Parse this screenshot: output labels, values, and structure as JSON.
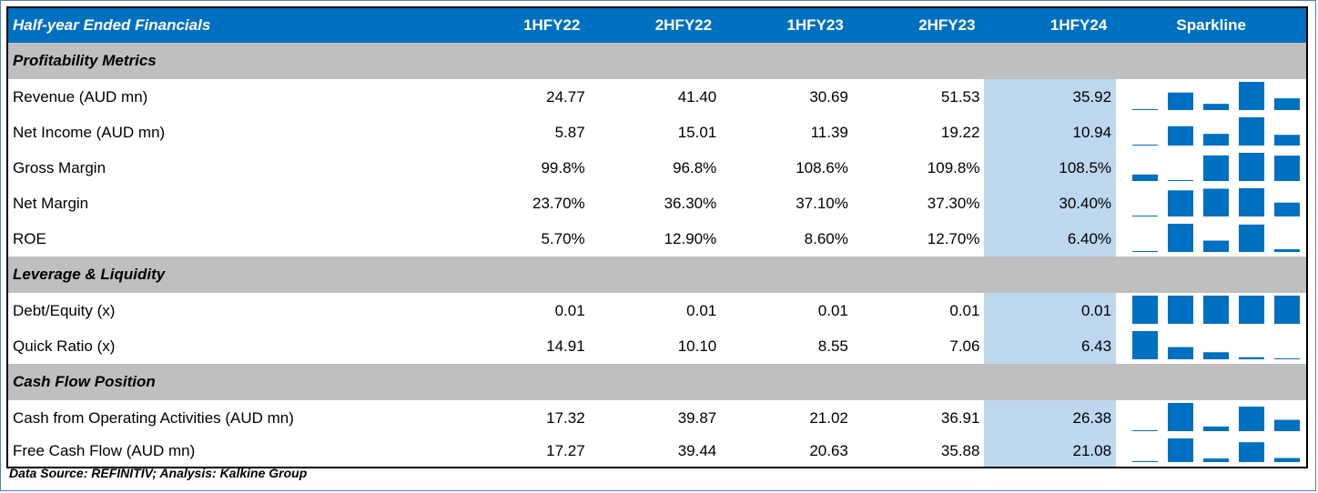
{
  "header": {
    "title": "Half-year Ended Financials",
    "periods": [
      "1HFY22",
      "2HFY22",
      "1HFY23",
      "2HFY23",
      "1HFY24"
    ],
    "sparkline_label": "Sparkline"
  },
  "sections": [
    {
      "title": "Profitability Metrics",
      "rows": [
        {
          "label": "Revenue (AUD mn)",
          "display": [
            "24.77",
            "41.40",
            "30.69",
            "51.53",
            "35.92"
          ],
          "values": [
            24.77,
            41.4,
            30.69,
            51.53,
            35.92
          ]
        },
        {
          "label": "Net Income (AUD mn)",
          "display": [
            "5.87",
            "15.01",
            "11.39",
            "19.22",
            "10.94"
          ],
          "values": [
            5.87,
            15.01,
            11.39,
            19.22,
            10.94
          ]
        },
        {
          "label": "Gross Margin",
          "display": [
            "99.8%",
            "96.8%",
            "108.6%",
            "109.8%",
            "108.5%"
          ],
          "values": [
            99.8,
            96.8,
            108.6,
            109.8,
            108.5
          ]
        },
        {
          "label": "Net Margin",
          "display": [
            "23.70%",
            "36.30%",
            "37.10%",
            "37.30%",
            "30.40%"
          ],
          "values": [
            23.7,
            36.3,
            37.1,
            37.3,
            30.4
          ]
        },
        {
          "label": "ROE",
          "display": [
            "5.70%",
            "12.90%",
            "8.60%",
            "12.70%",
            "6.40%"
          ],
          "values": [
            5.7,
            12.9,
            8.6,
            12.7,
            6.4
          ]
        }
      ]
    },
    {
      "title": "Leverage & Liquidity",
      "rows": [
        {
          "label": "Debt/Equity (x)",
          "display": [
            "0.01",
            "0.01",
            "0.01",
            "0.01",
            "0.01"
          ],
          "values": [
            0.01,
            0.01,
            0.01,
            0.01,
            0.01
          ]
        },
        {
          "label": "Quick Ratio (x)",
          "display": [
            "14.91",
            "10.10",
            "8.55",
            "7.06",
            "6.43"
          ],
          "values": [
            14.91,
            10.1,
            8.55,
            7.06,
            6.43
          ]
        }
      ]
    },
    {
      "title": "Cash Flow Position",
      "rows": [
        {
          "label": "Cash from Operating Activities (AUD mn)",
          "display": [
            "17.32",
            "39.87",
            "21.02",
            "36.91",
            "26.38"
          ],
          "values": [
            17.32,
            39.87,
            21.02,
            36.91,
            26.38
          ]
        },
        {
          "label": "Free Cash Flow (AUD mn)",
          "display": [
            "17.27",
            "39.44",
            "20.63",
            "35.88",
            "21.08"
          ],
          "values": [
            17.27,
            39.44,
            20.63,
            35.88,
            21.08
          ]
        }
      ]
    }
  ],
  "footer": "Data Source: REFINITIV; Analysis: Kalkine Group",
  "colors": {
    "header_bg": "#0070c0",
    "section_bg": "#bfbfbf",
    "highlight_bg": "#bdd7ee",
    "spark_bar": "#0070c0"
  }
}
